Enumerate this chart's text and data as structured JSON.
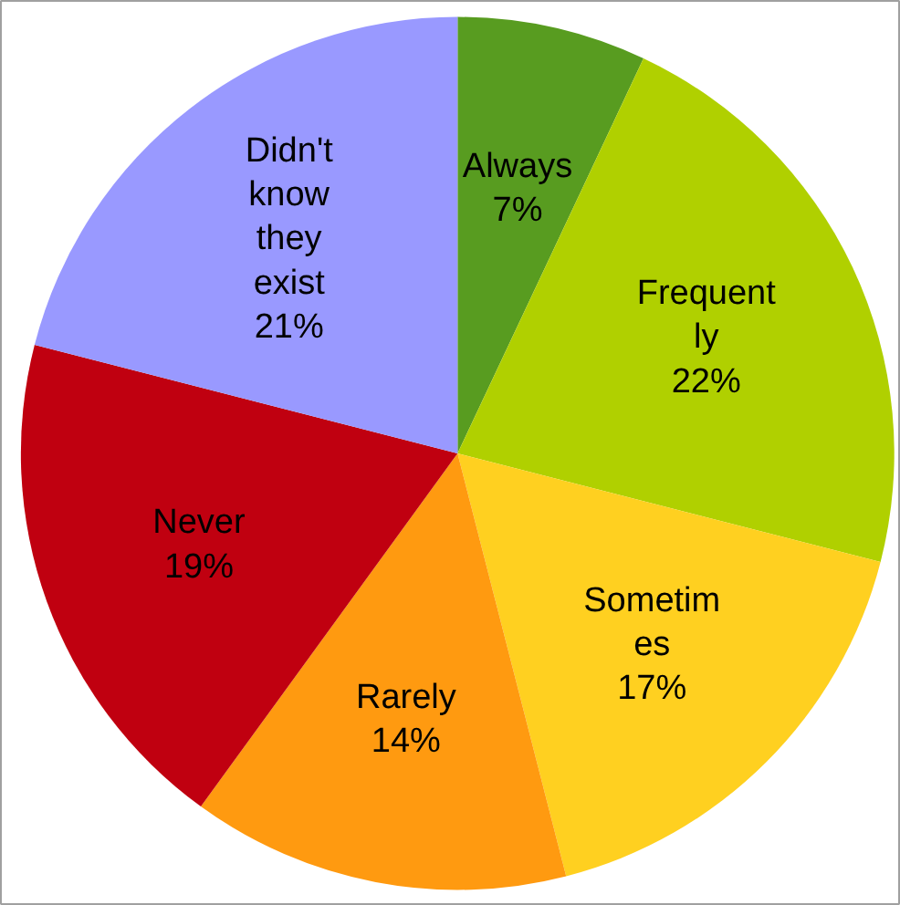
{
  "chart_data": {
    "type": "pie",
    "categories": [
      "Always",
      "Frequent\nly",
      "Sometim\nes",
      "Rarely",
      "Never",
      "Didn't\nknow\nthey\nexist"
    ],
    "values": [
      7,
      22,
      17,
      14,
      19,
      21
    ],
    "value_labels": [
      "7%",
      "22%",
      "17%",
      "14%",
      "19%",
      "21%"
    ],
    "colors": [
      "#589c20",
      "#b0d000",
      "#ffd020",
      "#ff9a10",
      "#c00010",
      "#9999ff"
    ],
    "legend": false
  }
}
